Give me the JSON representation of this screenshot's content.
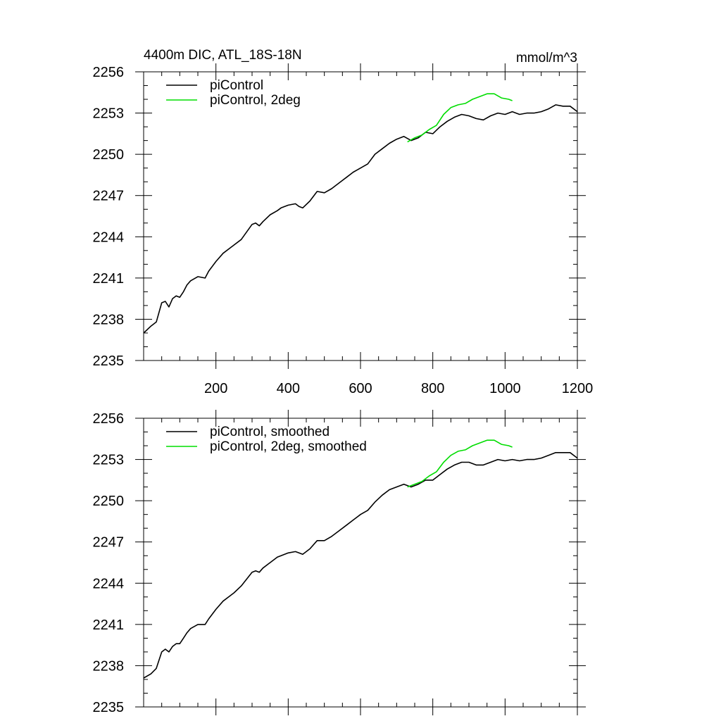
{
  "chart_data": [
    {
      "type": "line",
      "title": "4400m DIC, ATL_18S-18N",
      "units": "mmol/m^3",
      "xlabel": "",
      "ylabel": "",
      "xlim": [
        0,
        1200
      ],
      "ylim": [
        2235,
        2256
      ],
      "xticks": [
        200,
        400,
        600,
        800,
        1000,
        1200
      ],
      "xtick_labels": [
        "200",
        "400",
        "600",
        "800",
        "1000",
        "1200"
      ],
      "yticks": [
        2235,
        2238,
        2241,
        2244,
        2247,
        2250,
        2253,
        2256
      ],
      "ytick_labels": [
        "2235",
        "2238",
        "2241",
        "2244",
        "2247",
        "2250",
        "2253",
        "2256"
      ],
      "grid": false,
      "legend_position": "top-left",
      "series": [
        {
          "name": "piControl",
          "color": "#000000",
          "x": [
            0,
            20,
            35,
            50,
            60,
            70,
            80,
            90,
            100,
            110,
            120,
            130,
            150,
            170,
            180,
            200,
            220,
            240,
            250,
            270,
            300,
            310,
            320,
            330,
            350,
            370,
            380,
            400,
            420,
            430,
            440,
            460,
            480,
            500,
            520,
            540,
            560,
            580,
            600,
            620,
            640,
            660,
            680,
            700,
            720,
            740,
            760,
            780,
            800,
            820,
            840,
            860,
            880,
            900,
            920,
            940,
            960,
            980,
            1000,
            1020,
            1040,
            1060,
            1080,
            1100,
            1120,
            1140,
            1160,
            1180,
            1200
          ],
          "values": [
            2237.0,
            2237.5,
            2237.8,
            2239.2,
            2239.3,
            2238.9,
            2239.5,
            2239.7,
            2239.6,
            2240.0,
            2240.5,
            2240.8,
            2241.1,
            2241.0,
            2241.5,
            2242.2,
            2242.8,
            2243.2,
            2243.4,
            2243.8,
            2244.9,
            2245.0,
            2244.8,
            2245.1,
            2245.6,
            2245.9,
            2246.1,
            2246.3,
            2246.4,
            2246.2,
            2246.1,
            2246.6,
            2247.3,
            2247.2,
            2247.5,
            2247.9,
            2248.3,
            2248.7,
            2249.0,
            2249.3,
            2250.0,
            2250.4,
            2250.8,
            2251.1,
            2251.3,
            2251.0,
            2251.2,
            2251.6,
            2251.5,
            2252.0,
            2252.4,
            2252.7,
            2252.9,
            2252.8,
            2252.6,
            2252.5,
            2252.8,
            2253.0,
            2252.9,
            2253.1,
            2252.9,
            2253.0,
            2253.0,
            2253.1,
            2253.3,
            2253.6,
            2253.5,
            2253.5,
            2253.1
          ]
        },
        {
          "name": "piControl, 2deg",
          "color": "#00dd00",
          "x": [
            730,
            750,
            770,
            790,
            810,
            830,
            850,
            870,
            890,
            910,
            930,
            950,
            970,
            990,
            1010,
            1020
          ],
          "values": [
            2250.9,
            2251.2,
            2251.4,
            2251.8,
            2252.1,
            2252.9,
            2253.4,
            2253.6,
            2253.7,
            2254.0,
            2254.2,
            2254.4,
            2254.4,
            2254.1,
            2254.0,
            2253.9
          ]
        }
      ]
    },
    {
      "type": "line",
      "title": "",
      "units": "",
      "xlabel": "",
      "ylabel": "",
      "xlim": [
        0,
        1200
      ],
      "ylim": [
        2235,
        2256
      ],
      "xticks": [
        200,
        400,
        600,
        800,
        1000,
        1200
      ],
      "yticks": [
        2235,
        2238,
        2241,
        2244,
        2247,
        2250,
        2253,
        2256
      ],
      "ytick_labels": [
        "2235",
        "2238",
        "2241",
        "2244",
        "2247",
        "2250",
        "2253",
        "2256"
      ],
      "grid": false,
      "legend_position": "top-left",
      "series": [
        {
          "name": "piControl, smoothed",
          "color": "#000000",
          "x": [
            0,
            20,
            35,
            50,
            60,
            70,
            80,
            90,
            100,
            110,
            120,
            130,
            150,
            170,
            180,
            200,
            220,
            240,
            250,
            270,
            300,
            310,
            320,
            330,
            350,
            370,
            380,
            400,
            420,
            430,
            440,
            460,
            480,
            500,
            520,
            540,
            560,
            580,
            600,
            620,
            640,
            660,
            680,
            700,
            720,
            740,
            760,
            780,
            800,
            820,
            840,
            860,
            880,
            900,
            920,
            940,
            960,
            980,
            1000,
            1020,
            1040,
            1060,
            1080,
            1100,
            1120,
            1140,
            1160,
            1180,
            1200
          ],
          "values": [
            2237.1,
            2237.4,
            2237.8,
            2239.0,
            2239.2,
            2239.0,
            2239.4,
            2239.6,
            2239.6,
            2240.0,
            2240.4,
            2240.7,
            2241.0,
            2241.0,
            2241.4,
            2242.1,
            2242.7,
            2243.1,
            2243.3,
            2243.8,
            2244.8,
            2244.9,
            2244.8,
            2245.1,
            2245.5,
            2245.9,
            2246.0,
            2246.2,
            2246.3,
            2246.2,
            2246.1,
            2246.5,
            2247.1,
            2247.1,
            2247.4,
            2247.8,
            2248.2,
            2248.6,
            2249.0,
            2249.3,
            2249.9,
            2250.4,
            2250.8,
            2251.0,
            2251.2,
            2251.0,
            2251.2,
            2251.5,
            2251.5,
            2251.9,
            2252.3,
            2252.6,
            2252.8,
            2252.8,
            2252.6,
            2252.6,
            2252.8,
            2253.0,
            2252.9,
            2253.0,
            2252.9,
            2253.0,
            2253.0,
            2253.1,
            2253.3,
            2253.5,
            2253.5,
            2253.5,
            2253.1
          ]
        },
        {
          "name": "piControl, 2deg, smoothed",
          "color": "#00dd00",
          "x": [
            730,
            750,
            770,
            790,
            810,
            830,
            850,
            870,
            890,
            910,
            930,
            950,
            970,
            990,
            1010,
            1020
          ],
          "values": [
            2251.0,
            2251.2,
            2251.4,
            2251.8,
            2252.1,
            2252.8,
            2253.3,
            2253.6,
            2253.7,
            2254.0,
            2254.2,
            2254.4,
            2254.4,
            2254.1,
            2254.0,
            2253.9
          ]
        }
      ]
    }
  ]
}
